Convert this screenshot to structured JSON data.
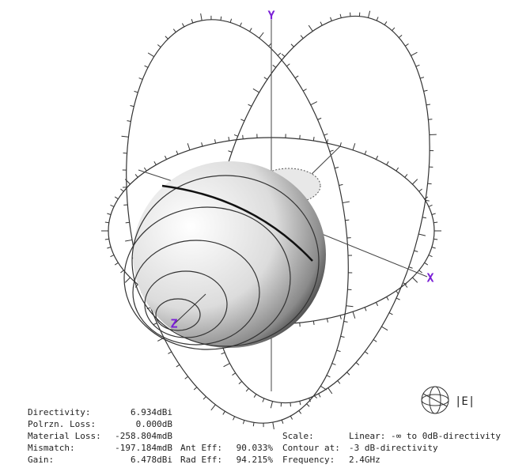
{
  "axes": {
    "x": "X",
    "y": "Y",
    "z": "Z"
  },
  "legend_label": "|E|",
  "stats": [
    {
      "label": "Directivity:",
      "value": "6.934dBi"
    },
    {
      "label": "Polrzn. Loss:",
      "value": "0.000dB"
    },
    {
      "label": "Material Loss:",
      "value": "-258.804mdB"
    },
    {
      "label": "Mismatch:",
      "value": "-197.184mdB"
    },
    {
      "label": "Gain:",
      "value": "6.478dBi"
    }
  ],
  "efficiency": [
    {
      "label": "Ant Eff:",
      "value": "90.033%"
    },
    {
      "label": "Rad Eff:",
      "value": "94.215%"
    }
  ],
  "settings": [
    {
      "label": "Scale:",
      "value": "Linear: -∞ to 0dB-directivity"
    },
    {
      "label": "Contour at:",
      "value": "-3 dB-directivity"
    },
    {
      "label": "Frequency:",
      "value": "2.4GHz"
    }
  ]
}
